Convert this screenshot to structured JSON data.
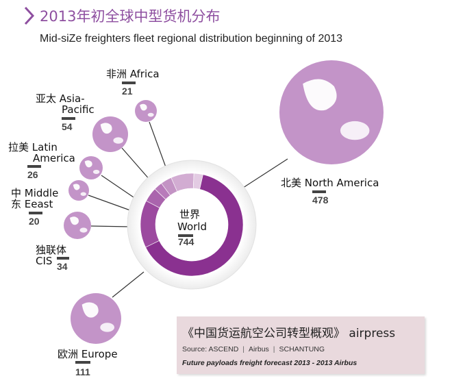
{
  "header": {
    "title": "2013年初全球中型货机分布",
    "subtitle": "Mid-siZe freighters fleet regional distribution beginning of 2013"
  },
  "colors": {
    "accent": "#8e4fa0",
    "donut_main": "#8a3190",
    "globe": "#c394c8",
    "source_bg": "#e9d9dd"
  },
  "chart_data": {
    "type": "pie",
    "title": "2013年初全球中型货机分布",
    "subtitle": "Mid-siZe freighters fleet regional distribution beginning of 2013",
    "total": {
      "label_cn": "世界",
      "label_en": "World",
      "value": 744
    },
    "regions": [
      {
        "key": "north-america",
        "label_cn": "北美",
        "label_en": "North America",
        "value": 478,
        "color": "#8a3190"
      },
      {
        "key": "europe",
        "label_cn": "欧洲",
        "label_en": "Europe",
        "value": 111,
        "color": "#9c4a9f"
      },
      {
        "key": "cis",
        "label_cn": "独联体",
        "label_en": "CIS",
        "value": 34,
        "color": "#aa64ad"
      },
      {
        "key": "middle-east",
        "label_cn": "中东",
        "label_en": "Middle Eeast",
        "value": 20,
        "color": "#b87bba"
      },
      {
        "key": "latin-america",
        "label_cn": "拉美",
        "label_en": "Latin America",
        "value": 26,
        "color": "#c393c4"
      },
      {
        "key": "asia-pacific",
        "label_cn": "亚太",
        "label_en": "Asia-Pacific",
        "value": 54,
        "color": "#d2acd2"
      },
      {
        "key": "africa",
        "label_cn": "非洲",
        "label_en": "Africa",
        "value": 21,
        "color": "#e3cbe3"
      }
    ],
    "legend": "none",
    "grid": false
  },
  "source": {
    "title": "《中国货运航空公司转型概观》 airpress",
    "source_label": "Source: ASCEND",
    "separator": "|",
    "airbus": "Airbus",
    "schantung": "SCHANTUNG",
    "note": "Future payloads freight forecast  2013 - 2013 Airbus"
  }
}
